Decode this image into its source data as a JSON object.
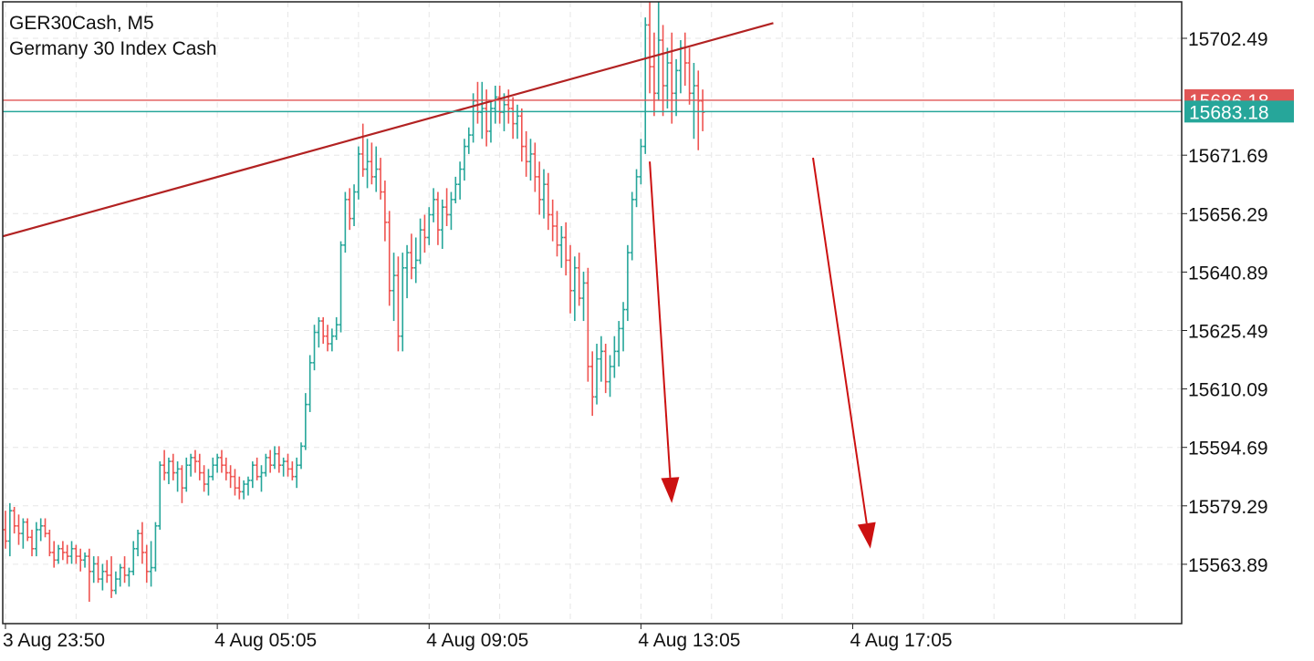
{
  "header": {
    "symbol_label": "GER30Cash, M5",
    "instrument_name": "Germany 30 Index Cash"
  },
  "colors": {
    "bull": "#26a69a",
    "bear": "#ef5350",
    "trendline": "#b22222",
    "arrow": "#cc1111",
    "ask_line": "#e05555",
    "bid_line": "#26a69a",
    "grid": "#e6e6e6",
    "axis": "#222222"
  },
  "chart_data": {
    "type": "ohlc",
    "title": "GER30Cash, M5",
    "subtitle": "Germany 30 Index Cash",
    "timeframe": "M5",
    "ylim": [
      15552,
      15712
    ],
    "y_ticks": [
      "15702.49",
      "15671.69",
      "15656.29",
      "15640.89",
      "15625.49",
      "15610.09",
      "15594.69",
      "15579.29",
      "15563.89"
    ],
    "x_ticks": [
      "3 Aug 23:50",
      "4 Aug 05:05",
      "4 Aug 09:05",
      "4 Aug 13:05",
      "4 Aug 17:05"
    ],
    "x_tick_bars": [
      0,
      48,
      96,
      144,
      192
    ],
    "grid": true,
    "bars": [
      [
        15573,
        15578,
        15568,
        15570
      ],
      [
        15570,
        15580,
        15566,
        15578
      ],
      [
        15578,
        15579,
        15572,
        15574
      ],
      [
        15574,
        15577,
        15569,
        15572
      ],
      [
        15572,
        15576,
        15568,
        15575
      ],
      [
        15575,
        15576,
        15570,
        15571
      ],
      [
        15571,
        15573,
        15566,
        15568
      ],
      [
        15568,
        15575,
        15566,
        15573
      ],
      [
        15573,
        15576,
        15570,
        15574
      ],
      [
        15574,
        15576,
        15571,
        15572
      ],
      [
        15572,
        15573,
        15566,
        15567
      ],
      [
        15567,
        15570,
        15563,
        15565
      ],
      [
        15565,
        15569,
        15564,
        15568
      ],
      [
        15568,
        15570,
        15565,
        15567
      ],
      [
        15567,
        15569,
        15564,
        15566
      ],
      [
        15566,
        15570,
        15564,
        15568
      ],
      [
        15568,
        15569,
        15564,
        15566
      ],
      [
        15566,
        15568,
        15562,
        15565
      ],
      [
        15565,
        15567,
        15563,
        15566
      ],
      [
        15566,
        15568,
        15554,
        15562
      ],
      [
        15562,
        15566,
        15559,
        15564
      ],
      [
        15564,
        15566,
        15559,
        15560
      ],
      [
        15560,
        15564,
        15557,
        15562
      ],
      [
        15562,
        15565,
        15559,
        15561
      ],
      [
        15561,
        15566,
        15555,
        15557
      ],
      [
        15557,
        15562,
        15556,
        15560
      ],
      [
        15560,
        15564,
        15558,
        15563
      ],
      [
        15563,
        15566,
        15559,
        15561
      ],
      [
        15561,
        15563,
        15558,
        15562
      ],
      [
        15562,
        15570,
        15561,
        15568
      ],
      [
        15568,
        15573,
        15566,
        15572
      ],
      [
        15572,
        15575,
        15564,
        15567
      ],
      [
        15567,
        15569,
        15559,
        15562
      ],
      [
        15562,
        15570,
        15558,
        15563
      ],
      [
        15563,
        15575,
        15562,
        15574
      ],
      [
        15574,
        15591,
        15573,
        15590
      ],
      [
        15590,
        15594,
        15586,
        15588
      ],
      [
        15588,
        15592,
        15585,
        15591
      ],
      [
        15591,
        15593,
        15586,
        15588
      ],
      [
        15588,
        15591,
        15583,
        15589
      ],
      [
        15589,
        15590,
        15580,
        15584
      ],
      [
        15584,
        15592,
        15583,
        15590
      ],
      [
        15590,
        15593,
        15587,
        15592
      ],
      [
        15592,
        15594,
        15588,
        15591
      ],
      [
        15591,
        15593,
        15586,
        15588
      ],
      [
        15588,
        15590,
        15583,
        15585
      ],
      [
        15585,
        15589,
        15582,
        15587
      ],
      [
        15587,
        15592,
        15586,
        15590
      ],
      [
        15590,
        15593,
        15588,
        15592
      ],
      [
        15592,
        15594,
        15588,
        15590
      ],
      [
        15590,
        15592,
        15586,
        15588
      ],
      [
        15588,
        15590,
        15584,
        15587
      ],
      [
        15587,
        15589,
        15582,
        15584
      ],
      [
        15584,
        15587,
        15581,
        15583
      ],
      [
        15583,
        15586,
        15581,
        15585
      ],
      [
        15585,
        15587,
        15582,
        15586
      ],
      [
        15586,
        15591,
        15584,
        15590
      ],
      [
        15590,
        15592,
        15586,
        15587
      ],
      [
        15587,
        15590,
        15583,
        15588
      ],
      [
        15588,
        15593,
        15587,
        15592
      ],
      [
        15592,
        15594,
        15588,
        15590
      ],
      [
        15590,
        15595,
        15589,
        15593
      ],
      [
        15593,
        15595,
        15588,
        15590
      ],
      [
        15590,
        15592,
        15587,
        15591
      ],
      [
        15591,
        15593,
        15587,
        15589
      ],
      [
        15589,
        15591,
        15586,
        15587
      ],
      [
        15587,
        15592,
        15584,
        15590
      ],
      [
        15590,
        15596,
        15589,
        15595
      ],
      [
        15595,
        15609,
        15594,
        15606
      ],
      [
        15606,
        15619,
        15604,
        15617
      ],
      [
        15617,
        15627,
        15615,
        15625
      ],
      [
        15625,
        15629,
        15621,
        15628
      ],
      [
        15628,
        15629,
        15622,
        15624
      ],
      [
        15624,
        15627,
        15620,
        15622
      ],
      [
        15622,
        15626,
        15620,
        15624
      ],
      [
        15624,
        15629,
        15623,
        15627
      ],
      [
        15627,
        15649,
        15625,
        15648
      ],
      [
        15648,
        15662,
        15646,
        15660
      ],
      [
        15660,
        15663,
        15652,
        15655
      ],
      [
        15655,
        15664,
        15653,
        15662
      ],
      [
        15662,
        15674,
        15660,
        15672
      ],
      [
        15672,
        15680,
        15666,
        15668
      ],
      [
        15668,
        15676,
        15663,
        15670
      ],
      [
        15670,
        15675,
        15664,
        15666
      ],
      [
        15666,
        15674,
        15662,
        15668
      ],
      [
        15668,
        15671,
        15660,
        15662
      ],
      [
        15662,
        15665,
        15649,
        15654
      ],
      [
        15654,
        15657,
        15632,
        15636
      ],
      [
        15636,
        15646,
        15628,
        15640
      ],
      [
        15640,
        15645,
        15620,
        15624
      ],
      [
        15624,
        15646,
        15620,
        15642
      ],
      [
        15642,
        15648,
        15634,
        15646
      ],
      [
        15646,
        15651,
        15639,
        15642
      ],
      [
        15642,
        15650,
        15638,
        15644
      ],
      [
        15644,
        15655,
        15643,
        15652
      ],
      [
        15652,
        15656,
        15646,
        15650
      ],
      [
        15650,
        15658,
        15648,
        15656
      ],
      [
        15656,
        15663,
        15654,
        15660
      ],
      [
        15660,
        15662,
        15648,
        15652
      ],
      [
        15652,
        15660,
        15647,
        15658
      ],
      [
        15658,
        15663,
        15653,
        15656
      ],
      [
        15656,
        15662,
        15652,
        15660
      ],
      [
        15660,
        15666,
        15659,
        15664
      ],
      [
        15664,
        15670,
        15660,
        15668
      ],
      [
        15668,
        15676,
        15665,
        15674
      ],
      [
        15674,
        15679,
        15672,
        15677
      ],
      [
        15677,
        15688,
        15675,
        15686
      ],
      [
        15686,
        15691,
        15680,
        15683
      ],
      [
        15683,
        15691,
        15676,
        15684
      ],
      [
        15684,
        15689,
        15674,
        15678
      ],
      [
        15678,
        15686,
        15675,
        15684
      ],
      [
        15684,
        15690,
        15680,
        15687
      ],
      [
        15687,
        15690,
        15680,
        15683
      ],
      [
        15683,
        15688,
        15678,
        15685
      ],
      [
        15685,
        15689,
        15680,
        15684
      ],
      [
        15684,
        15687,
        15676,
        15680
      ],
      [
        15680,
        15685,
        15676,
        15682
      ],
      [
        15682,
        15684,
        15670,
        15674
      ],
      [
        15674,
        15678,
        15666,
        15670
      ],
      [
        15670,
        15676,
        15665,
        15672
      ],
      [
        15672,
        15675,
        15662,
        15666
      ],
      [
        15666,
        15670,
        15656,
        15660
      ],
      [
        15660,
        15668,
        15655,
        15664
      ],
      [
        15664,
        15667,
        15652,
        15656
      ],
      [
        15656,
        15660,
        15649,
        15653
      ],
      [
        15653,
        15657,
        15645,
        15648
      ],
      [
        15648,
        15653,
        15642,
        15650
      ],
      [
        15650,
        15654,
        15640,
        15644
      ],
      [
        15644,
        15648,
        15630,
        15636
      ],
      [
        15636,
        15645,
        15628,
        15642
      ],
      [
        15642,
        15646,
        15632,
        15634
      ],
      [
        15634,
        15641,
        15628,
        15638
      ],
      [
        15638,
        15642,
        15612,
        15616
      ],
      [
        15616,
        15620,
        15603,
        15608
      ],
      [
        15608,
        15622,
        15606,
        15618
      ],
      [
        15618,
        15624,
        15612,
        15620
      ],
      [
        15620,
        15622,
        15609,
        15612
      ],
      [
        15612,
        15619,
        15608,
        15616
      ],
      [
        15616,
        15624,
        15613,
        15620
      ],
      [
        15620,
        15628,
        15616,
        15626
      ],
      [
        15626,
        15633,
        15620,
        15631
      ],
      [
        15631,
        15648,
        15628,
        15646
      ],
      [
        15646,
        15662,
        15644,
        15660
      ],
      [
        15660,
        15668,
        15658,
        15666
      ],
      [
        15666,
        15676,
        15664,
        15674
      ],
      [
        15674,
        15708,
        15672,
        15706
      ],
      [
        15706,
        15712,
        15688,
        15695
      ],
      [
        15695,
        15704,
        15682,
        15688
      ],
      [
        15688,
        15712,
        15686,
        15702
      ],
      [
        15702,
        15706,
        15682,
        15690
      ],
      [
        15690,
        15700,
        15684,
        15696
      ],
      [
        15696,
        15704,
        15680,
        15688
      ],
      [
        15688,
        15697,
        15682,
        15694
      ],
      [
        15694,
        15702,
        15688,
        15700
      ],
      [
        15700,
        15704,
        15690,
        15696
      ],
      [
        15696,
        15700,
        15685,
        15688
      ],
      [
        15688,
        15696,
        15676,
        15690
      ],
      [
        15690,
        15694,
        15673,
        15686
      ],
      [
        15686,
        15689,
        15678,
        15683
      ]
    ],
    "horizontal_lines": [
      {
        "label": "15686.18",
        "value": 15686.18,
        "role": "ask"
      },
      {
        "label": "15683.18",
        "value": 15683.18,
        "role": "bid"
      }
    ],
    "trendline": {
      "from": {
        "bar": 0,
        "price": 15650.5
      },
      "to": {
        "bar": 174,
        "price": 15706.5
      }
    },
    "arrows": [
      {
        "from": {
          "bar": 146,
          "price": 15670
        },
        "to": {
          "bar": 151,
          "price": 15580
        },
        "direction": "down"
      },
      {
        "from": {
          "bar": 183,
          "price": 15671
        },
        "to": {
          "bar": 196,
          "price": 15568
        },
        "direction": "down"
      }
    ]
  }
}
